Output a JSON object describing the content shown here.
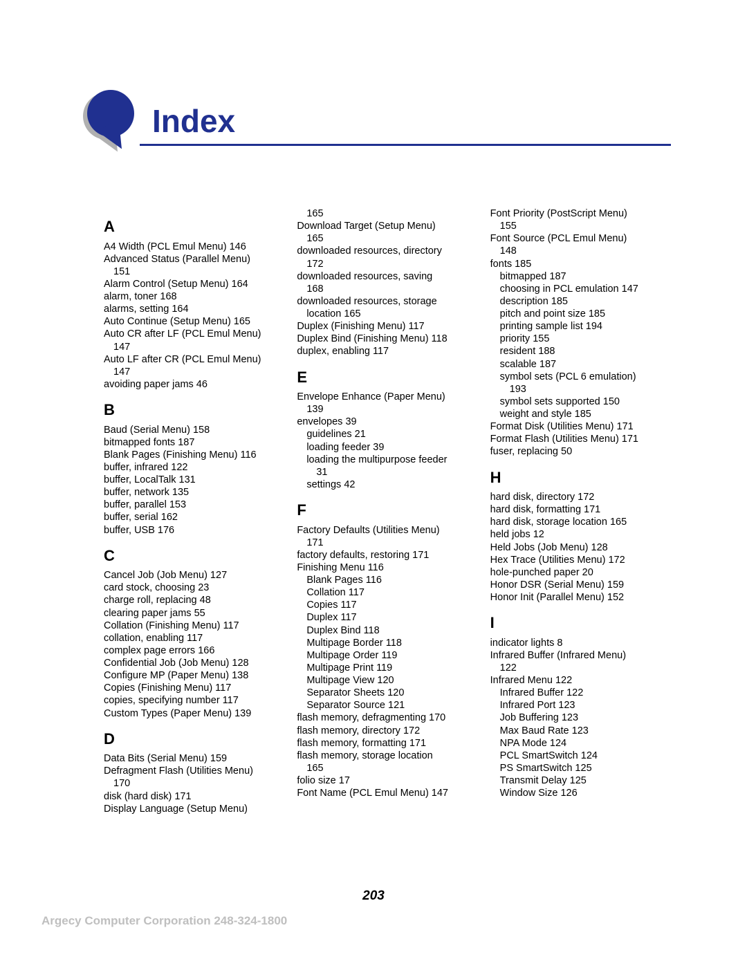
{
  "page_title": "Index",
  "page_number": "203",
  "footer_corp": "Argecy Computer Corporation 248-324-1800",
  "colors": {
    "accent": "#203090",
    "shadow": "#b0b0b0",
    "text": "#000000",
    "footer_gray": "#bfbfbf",
    "background": "#ffffff"
  },
  "columns": [
    [
      {
        "t": "letter",
        "v": "A"
      },
      {
        "t": "e",
        "v": "A4 Width (PCL Emul Menu)  146"
      },
      {
        "t": "e",
        "v": "Advanced Status (Parallel Menu)"
      },
      {
        "t": "s1",
        "v": "151"
      },
      {
        "t": "e",
        "v": "Alarm Control (Setup Menu)  164"
      },
      {
        "t": "e",
        "v": "alarm, toner  168"
      },
      {
        "t": "e",
        "v": "alarms, setting  164"
      },
      {
        "t": "e",
        "v": "Auto Continue (Setup Menu)  165"
      },
      {
        "t": "e",
        "v": "Auto CR after LF (PCL Emul Menu)"
      },
      {
        "t": "s1",
        "v": "147"
      },
      {
        "t": "e",
        "v": "Auto LF after CR (PCL Emul Menu)"
      },
      {
        "t": "s1",
        "v": "147"
      },
      {
        "t": "e",
        "v": "avoiding paper jams  46"
      },
      {
        "t": "letter",
        "v": "B"
      },
      {
        "t": "e",
        "v": "Baud (Serial Menu)  158"
      },
      {
        "t": "e",
        "v": "bitmapped fonts  187"
      },
      {
        "t": "e",
        "v": "Blank Pages (Finishing Menu)  116"
      },
      {
        "t": "e",
        "v": "buffer, infrared  122"
      },
      {
        "t": "e",
        "v": "buffer, LocalTalk  131"
      },
      {
        "t": "e",
        "v": "buffer, network  135"
      },
      {
        "t": "e",
        "v": "buffer, parallel  153"
      },
      {
        "t": "e",
        "v": "buffer, serial  162"
      },
      {
        "t": "e",
        "v": "buffer, USB  176"
      },
      {
        "t": "letter",
        "v": "C"
      },
      {
        "t": "e",
        "v": "Cancel Job (Job Menu)  127"
      },
      {
        "t": "e",
        "v": "card stock, choosing  23"
      },
      {
        "t": "e",
        "v": "charge roll, replacing  48"
      },
      {
        "t": "e",
        "v": "clearing paper jams  55"
      },
      {
        "t": "e",
        "v": "Collation (Finishing Menu)  117"
      },
      {
        "t": "e",
        "v": "collation, enabling  117"
      },
      {
        "t": "e",
        "v": "complex page errors  166"
      },
      {
        "t": "e",
        "v": "Confidential Job (Job Menu)  128"
      },
      {
        "t": "e",
        "v": "Configure MP (Paper Menu)  138"
      },
      {
        "t": "e",
        "v": "Copies (Finishing Menu)  117"
      },
      {
        "t": "e",
        "v": "copies, specifying number  117"
      },
      {
        "t": "e",
        "v": "Custom Types (Paper Menu)  139"
      },
      {
        "t": "letter",
        "v": "D"
      },
      {
        "t": "e",
        "v": "Data Bits (Serial Menu)  159"
      },
      {
        "t": "e",
        "v": "Defragment Flash (Utilities Menu)"
      },
      {
        "t": "s1",
        "v": "170"
      },
      {
        "t": "e",
        "v": "disk (hard disk)  171"
      },
      {
        "t": "e",
        "v": "Display Language (Setup Menu)"
      }
    ],
    [
      {
        "t": "s1",
        "v": "165"
      },
      {
        "t": "e",
        "v": "Download Target (Setup Menu)"
      },
      {
        "t": "s1",
        "v": "165"
      },
      {
        "t": "e",
        "v": "downloaded resources, directory"
      },
      {
        "t": "s1",
        "v": "172"
      },
      {
        "t": "e",
        "v": "downloaded resources, saving"
      },
      {
        "t": "s1",
        "v": "168"
      },
      {
        "t": "e",
        "v": "downloaded resources, storage"
      },
      {
        "t": "s1",
        "v": "location  165"
      },
      {
        "t": "e",
        "v": "Duplex (Finishing Menu)  117"
      },
      {
        "t": "e",
        "v": "Duplex Bind (Finishing Menu)  118"
      },
      {
        "t": "e",
        "v": "duplex, enabling  117"
      },
      {
        "t": "letter",
        "v": "E"
      },
      {
        "t": "e",
        "v": "Envelope Enhance (Paper Menu)"
      },
      {
        "t": "s1",
        "v": "139"
      },
      {
        "t": "e",
        "v": "envelopes  39"
      },
      {
        "t": "s1",
        "v": "guidelines  21"
      },
      {
        "t": "s1",
        "v": "loading feeder  39"
      },
      {
        "t": "s1",
        "v": "loading the multipurpose feeder"
      },
      {
        "t": "s2",
        "v": "31"
      },
      {
        "t": "s1",
        "v": "settings  42"
      },
      {
        "t": "letter",
        "v": "F"
      },
      {
        "t": "e",
        "v": "Factory Defaults (Utilities Menu)"
      },
      {
        "t": "s1",
        "v": "171"
      },
      {
        "t": "e",
        "v": "factory defaults, restoring  171"
      },
      {
        "t": "e",
        "v": "Finishing Menu  116"
      },
      {
        "t": "s1",
        "v": "Blank Pages  116"
      },
      {
        "t": "s1",
        "v": "Collation  117"
      },
      {
        "t": "s1",
        "v": "Copies  117"
      },
      {
        "t": "s1",
        "v": "Duplex  117"
      },
      {
        "t": "s1",
        "v": "Duplex Bind  118"
      },
      {
        "t": "s1",
        "v": "Multipage Border  118"
      },
      {
        "t": "s1",
        "v": "Multipage Order  119"
      },
      {
        "t": "s1",
        "v": "Multipage Print  119"
      },
      {
        "t": "s1",
        "v": "Multipage View  120"
      },
      {
        "t": "s1",
        "v": "Separator Sheets  120"
      },
      {
        "t": "s1",
        "v": "Separator Source  121"
      },
      {
        "t": "e",
        "v": "flash memory, defragmenting  170"
      },
      {
        "t": "e",
        "v": "flash memory, directory  172"
      },
      {
        "t": "e",
        "v": "flash memory, formatting  171"
      },
      {
        "t": "e",
        "v": "flash memory, storage location"
      },
      {
        "t": "s1",
        "v": "165"
      },
      {
        "t": "e",
        "v": "folio size  17"
      },
      {
        "t": "e",
        "v": "Font Name (PCL Emul Menu)  147"
      }
    ],
    [
      {
        "t": "e",
        "v": "Font Priority (PostScript Menu)"
      },
      {
        "t": "s1",
        "v": "155"
      },
      {
        "t": "e",
        "v": "Font Source (PCL Emul Menu)"
      },
      {
        "t": "s1",
        "v": "148"
      },
      {
        "t": "e",
        "v": "fonts  185"
      },
      {
        "t": "s1",
        "v": "bitmapped  187"
      },
      {
        "t": "s1",
        "v": "choosing in PCL emulation  147"
      },
      {
        "t": "s1",
        "v": "description  185"
      },
      {
        "t": "s1",
        "v": "pitch and point size  185"
      },
      {
        "t": "s1",
        "v": "printing sample list  194"
      },
      {
        "t": "s1",
        "v": "priority  155"
      },
      {
        "t": "s1",
        "v": "resident  188"
      },
      {
        "t": "s1",
        "v": "scalable  187"
      },
      {
        "t": "s1",
        "v": "symbol sets (PCL 6 emulation)"
      },
      {
        "t": "s2",
        "v": "193"
      },
      {
        "t": "s1",
        "v": "symbol sets supported  150"
      },
      {
        "t": "s1",
        "v": "weight and style  185"
      },
      {
        "t": "e",
        "v": "Format Disk (Utilities Menu)  171"
      },
      {
        "t": "e",
        "v": "Format Flash (Utilities Menu)  171"
      },
      {
        "t": "e",
        "v": "fuser, replacing  50"
      },
      {
        "t": "letter",
        "v": "H"
      },
      {
        "t": "e",
        "v": "hard disk, directory  172"
      },
      {
        "t": "e",
        "v": "hard disk, formatting  171"
      },
      {
        "t": "e",
        "v": "hard disk, storage location  165"
      },
      {
        "t": "e",
        "v": "held jobs  12"
      },
      {
        "t": "e",
        "v": "Held Jobs (Job Menu)  128"
      },
      {
        "t": "e",
        "v": "Hex Trace (Utilities Menu)  172"
      },
      {
        "t": "e",
        "v": "hole-punched paper  20"
      },
      {
        "t": "e",
        "v": "Honor DSR (Serial Menu)  159"
      },
      {
        "t": "e",
        "v": "Honor Init (Parallel Menu)  152"
      },
      {
        "t": "letter",
        "v": "I"
      },
      {
        "t": "e",
        "v": "indicator lights  8"
      },
      {
        "t": "e",
        "v": "Infrared Buffer (Infrared Menu)"
      },
      {
        "t": "s1",
        "v": "122"
      },
      {
        "t": "e",
        "v": "Infrared Menu  122"
      },
      {
        "t": "s1",
        "v": "Infrared Buffer  122"
      },
      {
        "t": "s1",
        "v": "Infrared Port  123"
      },
      {
        "t": "s1",
        "v": "Job Buffering  123"
      },
      {
        "t": "s1",
        "v": "Max Baud Rate  123"
      },
      {
        "t": "s1",
        "v": "NPA Mode  124"
      },
      {
        "t": "s1",
        "v": "PCL SmartSwitch  124"
      },
      {
        "t": "s1",
        "v": "PS SmartSwitch  125"
      },
      {
        "t": "s1",
        "v": "Transmit Delay  125"
      },
      {
        "t": "s1",
        "v": "Window Size  126"
      }
    ]
  ]
}
